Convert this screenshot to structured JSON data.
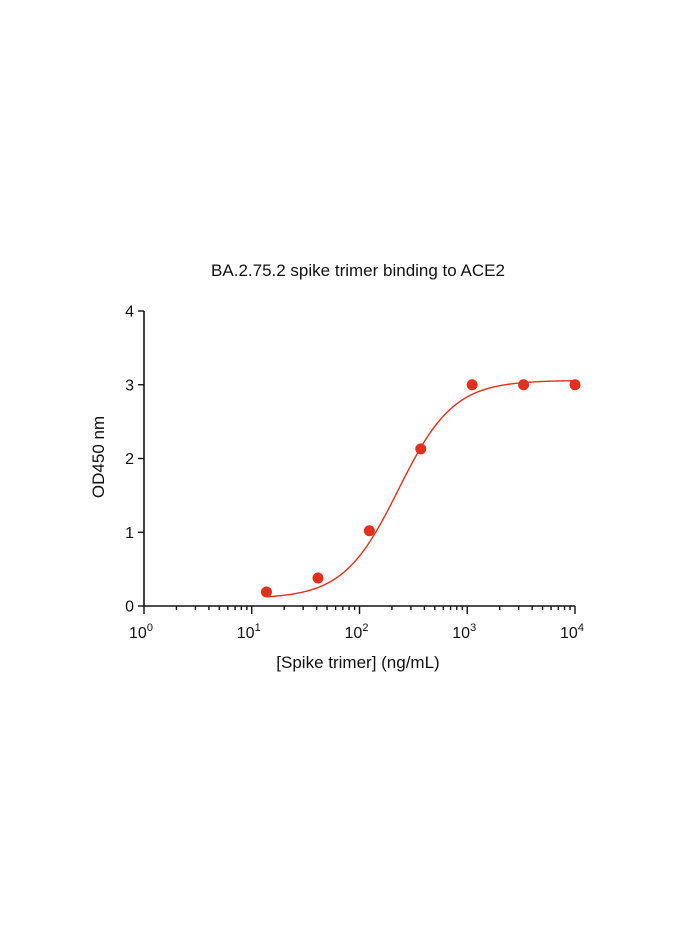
{
  "chart_data": {
    "type": "scatter",
    "title": "BA.2.75.2 spike trimer binding to ACE2",
    "xlabel": "[Spike trimer]  (ng/mL)",
    "ylabel": "OD450 nm",
    "x_scale": "log10",
    "xlim": [
      1,
      10000
    ],
    "ylim": [
      0,
      4
    ],
    "x_ticks": [
      {
        "base": "10",
        "exp": "0"
      },
      {
        "base": "10",
        "exp": "1"
      },
      {
        "base": "10",
        "exp": "2"
      },
      {
        "base": "10",
        "exp": "3"
      },
      {
        "base": "10",
        "exp": "4"
      }
    ],
    "y_ticks": [
      "0",
      "1",
      "2",
      "3",
      "4"
    ],
    "series": [
      {
        "color": "#e0301e",
        "x": [
          13.7,
          41.2,
          123.5,
          370.4,
          1111,
          3333,
          10000
        ],
        "y": [
          0.19,
          0.38,
          1.02,
          2.13,
          3.0,
          3.0,
          3.0
        ],
        "fit": {
          "bottom": 0.1,
          "top": 3.06,
          "ec50": 230,
          "hill": 1.7
        }
      }
    ],
    "grid": false,
    "legend": "none"
  }
}
